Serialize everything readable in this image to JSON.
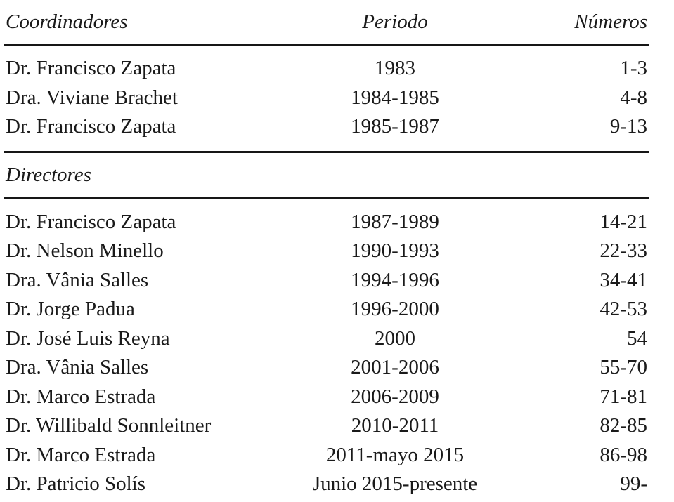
{
  "table": {
    "header": {
      "col1": "Coordinadores",
      "col2": "Periodo",
      "col3": "Números"
    },
    "coordinadores_rows": [
      {
        "name": "Dr. Francisco Zapata",
        "period": "1983",
        "numbers": "1-3"
      },
      {
        "name": "Dra. Viviane Brachet",
        "period": "1984-1985",
        "numbers": "4-8"
      },
      {
        "name": "Dr. Francisco Zapata",
        "period": "1985-1987",
        "numbers": "9-13"
      }
    ],
    "directores_label": "Directores",
    "directores_rows": [
      {
        "name": "Dr. Francisco Zapata",
        "period": "1987-1989",
        "numbers": "14-21"
      },
      {
        "name": "Dr. Nelson Minello",
        "period": "1990-1993",
        "numbers": "22-33"
      },
      {
        "name": "Dra. Vânia Salles",
        "period": "1994-1996",
        "numbers": "34-41"
      },
      {
        "name": "Dr. Jorge Padua",
        "period": "1996-2000",
        "numbers": "42-53"
      },
      {
        "name": "Dr. José Luis Reyna",
        "period": "2000",
        "numbers": "54"
      },
      {
        "name": "Dra. Vânia Salles",
        "period": "2001-2006",
        "numbers": "55-70"
      },
      {
        "name": "Dr. Marco Estrada",
        "period": "2006-2009",
        "numbers": "71-81"
      },
      {
        "name": "Dr. Willibald Sonnleitner",
        "period": "2010-2011",
        "numbers": "82-85"
      },
      {
        "name": "Dr. Marco Estrada",
        "period": "2011-mayo 2015",
        "numbers": "86-98"
      },
      {
        "name": "Dr. Patricio Solís",
        "period": "Junio 2015-presente",
        "numbers": "99-"
      }
    ],
    "colors": {
      "text": "#1a1a1a",
      "background": "#ffffff",
      "rule": "#161616"
    }
  }
}
